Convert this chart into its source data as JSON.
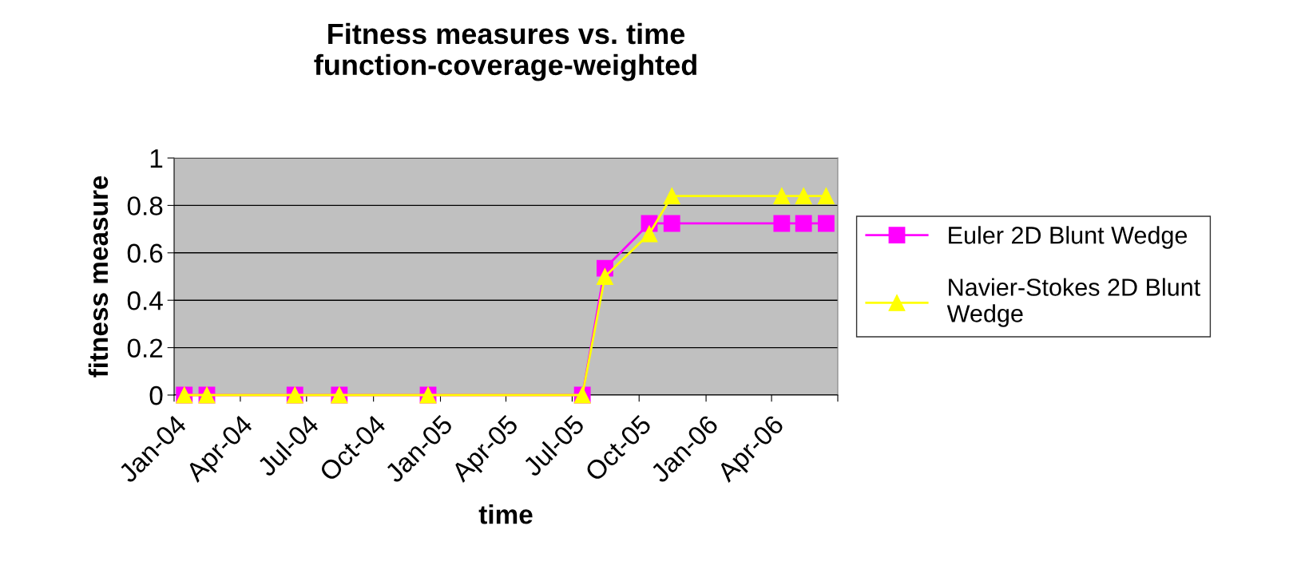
{
  "chart_data": {
    "type": "line",
    "title": "Fitness measures vs. time\nfunction-coverage-weighted",
    "xlabel": "time",
    "ylabel": "fitness measure",
    "x": [
      "2004-01-15",
      "2004-02-15",
      "2004-06-15",
      "2004-08-15",
      "2004-12-15",
      "2005-07-15",
      "2005-08-15",
      "2005-10-15",
      "2005-11-15",
      "2006-04-15",
      "2006-05-15",
      "2006-06-15"
    ],
    "series": [
      {
        "name": "Euler 2D Blunt Wedge",
        "color": "#ff00ff",
        "marker": "square",
        "values": [
          0,
          0,
          0,
          0,
          0,
          0,
          0.535,
          0.724,
          0.724,
          0.724,
          0.724,
          0.724
        ]
      },
      {
        "name": "Navier-Stokes 2D Blunt\nWedge",
        "color": "#ffff00",
        "marker": "triangle",
        "values": [
          0,
          0,
          0,
          0,
          0,
          0,
          0.5,
          0.68,
          0.84,
          0.84,
          0.84,
          0.84
        ]
      }
    ],
    "xlim": [
      "2004-01-01",
      "2006-07-01"
    ],
    "xticks": [
      {
        "value": "2004-01-01",
        "label": "Jan-04"
      },
      {
        "value": "2004-04-01",
        "label": "Apr-04"
      },
      {
        "value": "2004-07-01",
        "label": "Jul-04"
      },
      {
        "value": "2004-10-01",
        "label": "Oct-04"
      },
      {
        "value": "2005-01-01",
        "label": "Jan-05"
      },
      {
        "value": "2005-04-01",
        "label": "Apr-05"
      },
      {
        "value": "2005-07-01",
        "label": "Jul-05"
      },
      {
        "value": "2005-10-01",
        "label": "Oct-05"
      },
      {
        "value": "2006-01-01",
        "label": "Jan-06"
      },
      {
        "value": "2006-04-01",
        "label": "Apr-06"
      },
      {
        "value": "2006-07-01",
        "label": null
      }
    ],
    "ylim": [
      0,
      1
    ],
    "yticks": [
      0,
      0.2,
      0.4,
      0.6,
      0.8,
      1
    ],
    "grid": "y",
    "legend": "right",
    "line_style": "solid"
  }
}
